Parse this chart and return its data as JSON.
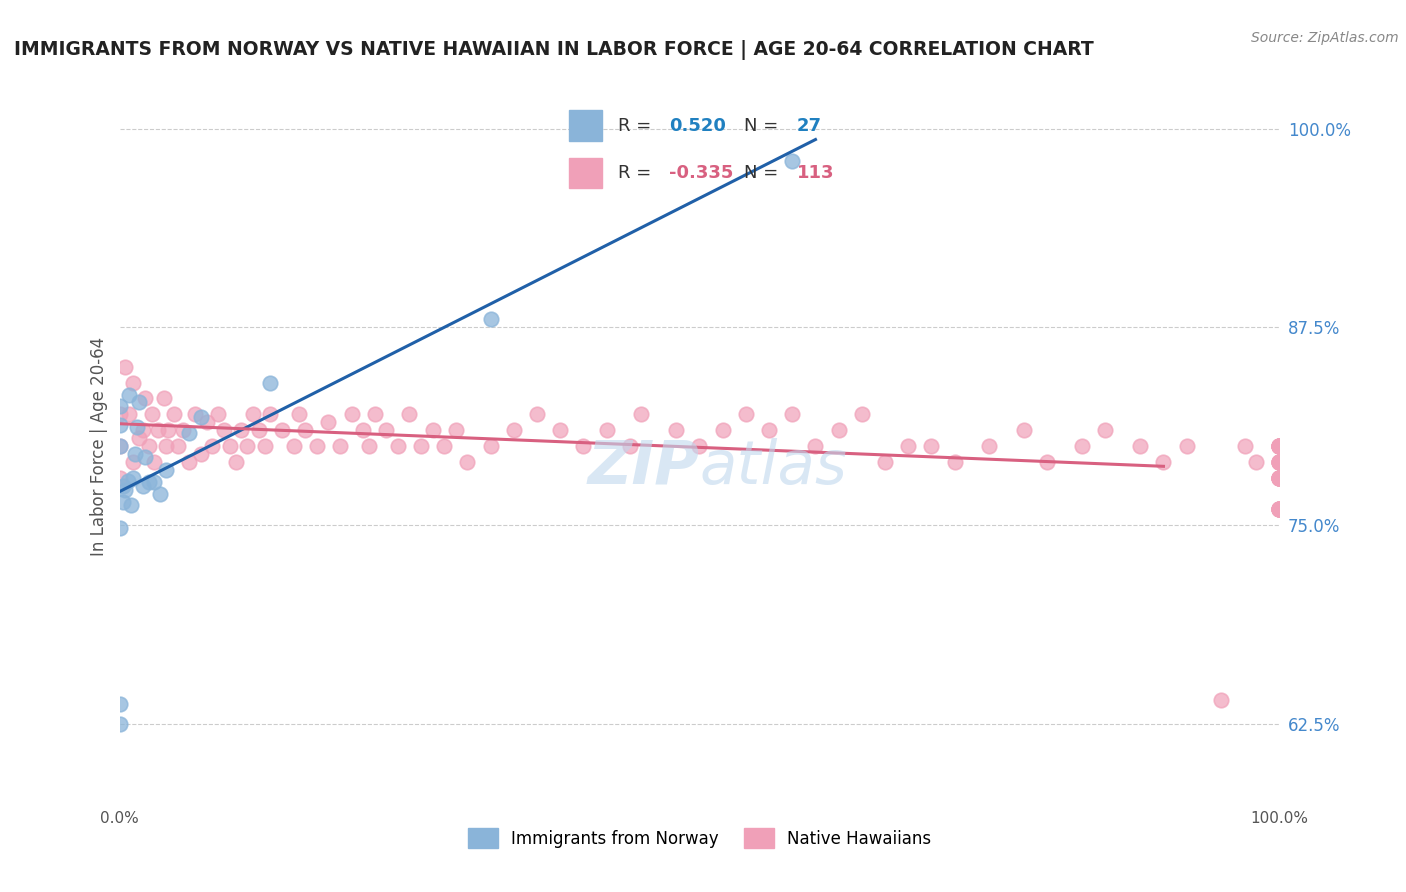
{
  "title": "IMMIGRANTS FROM NORWAY VS NATIVE HAWAIIAN IN LABOR FORCE | AGE 20-64 CORRELATION CHART",
  "source": "Source: ZipAtlas.com",
  "ylabel": "In Labor Force | Age 20-64",
  "xmin": 0.0,
  "xmax": 1.0,
  "ymin": 0.575,
  "ymax": 1.025,
  "yticks": [
    0.625,
    0.75,
    0.875,
    1.0
  ],
  "yticklabels": [
    "62.5%",
    "75.0%",
    "87.5%",
    "100.0%"
  ],
  "xticks": [
    0.0,
    1.0
  ],
  "xticklabels": [
    "0.0%",
    "100.0%"
  ],
  "blue_R": "0.520",
  "blue_N": "27",
  "pink_R": "-0.335",
  "pink_N": "113",
  "blue_color": "#8ab4d9",
  "pink_color": "#f0a0b8",
  "blue_line_color": "#2060a8",
  "pink_line_color": "#d86080",
  "legend_blue_color": "#2080c0",
  "legend_pink_color": "#d86080",
  "legend_text_color": "#333333",
  "right_tick_color": "#4488cc",
  "background_color": "#ffffff",
  "grid_color": "#cccccc",
  "watermark_color": "#c0d8ee",
  "title_color": "#222222",
  "source_color": "#888888",
  "blue_x": [
    0.0,
    0.0,
    0.0,
    0.0,
    0.0,
    0.0,
    0.003,
    0.003,
    0.005,
    0.007,
    0.008,
    0.01,
    0.012,
    0.013,
    0.015,
    0.017,
    0.02,
    0.022,
    0.025,
    0.03,
    0.035,
    0.04,
    0.06,
    0.07,
    0.13,
    0.32,
    0.58
  ],
  "blue_y": [
    0.625,
    0.637,
    0.748,
    0.8,
    0.813,
    0.825,
    0.765,
    0.775,
    0.772,
    0.778,
    0.832,
    0.763,
    0.78,
    0.795,
    0.812,
    0.828,
    0.775,
    0.793,
    0.777,
    0.777,
    0.77,
    0.785,
    0.808,
    0.818,
    0.84,
    0.88,
    0.98
  ],
  "pink_x": [
    0.0,
    0.0,
    0.0,
    0.005,
    0.008,
    0.012,
    0.012,
    0.017,
    0.02,
    0.022,
    0.025,
    0.028,
    0.03,
    0.033,
    0.038,
    0.04,
    0.042,
    0.047,
    0.05,
    0.055,
    0.06,
    0.065,
    0.07,
    0.075,
    0.08,
    0.085,
    0.09,
    0.095,
    0.1,
    0.105,
    0.11,
    0.115,
    0.12,
    0.125,
    0.13,
    0.14,
    0.15,
    0.155,
    0.16,
    0.17,
    0.18,
    0.19,
    0.2,
    0.21,
    0.215,
    0.22,
    0.23,
    0.24,
    0.25,
    0.26,
    0.27,
    0.28,
    0.29,
    0.3,
    0.32,
    0.34,
    0.36,
    0.38,
    0.4,
    0.42,
    0.44,
    0.45,
    0.48,
    0.5,
    0.52,
    0.54,
    0.56,
    0.58,
    0.6,
    0.62,
    0.64,
    0.66,
    0.68,
    0.7,
    0.72,
    0.75,
    0.78,
    0.8,
    0.83,
    0.85,
    0.88,
    0.9,
    0.92,
    0.95,
    0.97,
    0.98,
    1.0,
    1.0,
    1.0,
    1.0,
    1.0,
    1.0,
    1.0,
    1.0,
    1.0,
    1.0,
    1.0,
    1.0,
    1.0,
    1.0,
    1.0,
    1.0,
    1.0,
    1.0,
    1.0,
    1.0,
    1.0,
    1.0,
    1.0,
    1.0,
    1.0,
    1.0,
    1.0
  ],
  "pink_y": [
    0.78,
    0.8,
    0.82,
    0.85,
    0.82,
    0.79,
    0.84,
    0.805,
    0.81,
    0.83,
    0.8,
    0.82,
    0.79,
    0.81,
    0.83,
    0.8,
    0.81,
    0.82,
    0.8,
    0.81,
    0.79,
    0.82,
    0.795,
    0.815,
    0.8,
    0.82,
    0.81,
    0.8,
    0.79,
    0.81,
    0.8,
    0.82,
    0.81,
    0.8,
    0.82,
    0.81,
    0.8,
    0.82,
    0.81,
    0.8,
    0.815,
    0.8,
    0.82,
    0.81,
    0.8,
    0.82,
    0.81,
    0.8,
    0.82,
    0.8,
    0.81,
    0.8,
    0.81,
    0.79,
    0.8,
    0.81,
    0.82,
    0.81,
    0.8,
    0.81,
    0.8,
    0.82,
    0.81,
    0.8,
    0.81,
    0.82,
    0.81,
    0.82,
    0.8,
    0.81,
    0.82,
    0.79,
    0.8,
    0.8,
    0.79,
    0.8,
    0.81,
    0.79,
    0.8,
    0.81,
    0.8,
    0.79,
    0.8,
    0.64,
    0.8,
    0.79,
    0.79,
    0.8,
    0.76,
    0.78,
    0.8,
    0.79,
    0.76,
    0.78,
    0.8,
    0.79,
    0.76,
    0.78,
    0.8,
    0.76,
    0.78,
    0.8,
    0.79,
    0.76,
    0.78,
    0.8,
    0.76,
    0.78,
    0.8,
    0.79,
    0.76,
    0.78,
    0.8
  ]
}
